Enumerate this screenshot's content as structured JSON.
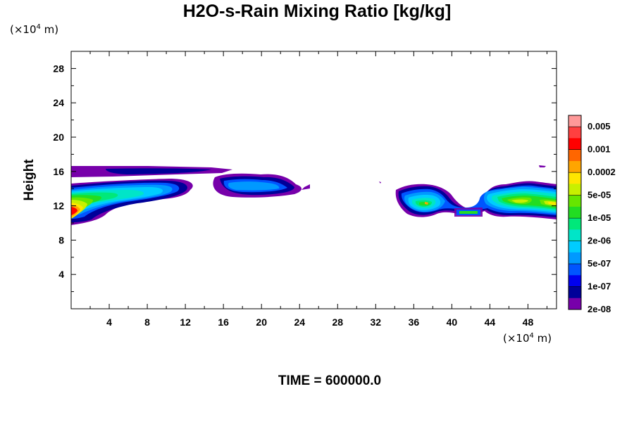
{
  "title": "H2O-s-Rain Mixing Ratio [kg/kg]",
  "time_label": "TIME = 600000.0",
  "y_unit": {
    "prefix": "(×10",
    "exp": "4",
    "suffix": " m)"
  },
  "x_unit": {
    "prefix": "(×10",
    "exp": "4",
    "suffix": " m)"
  },
  "chart_data": {
    "type": "heatmap",
    "title": "H2O-s-Rain Mixing Ratio [kg/kg]",
    "xlabel": "",
    "ylabel": "Height",
    "x_unit": "(×10^4 m)",
    "y_unit": "(×10^4 m)",
    "xlim": [
      0,
      51
    ],
    "ylim": [
      0,
      30
    ],
    "x_ticks": [
      4,
      8,
      12,
      16,
      20,
      24,
      28,
      32,
      36,
      40,
      44,
      48
    ],
    "y_ticks": [
      4,
      8,
      12,
      16,
      20,
      24,
      28
    ],
    "colorbar": {
      "labels": [
        "0.005",
        "0.001",
        "0.0002",
        "5e-05",
        "1e-05",
        "2e-06",
        "5e-07",
        "1e-07",
        "2e-08"
      ],
      "colors": [
        "#ff9999",
        "#ff4040",
        "#ff0000",
        "#ff6600",
        "#ffa500",
        "#ffe600",
        "#c8f000",
        "#66e600",
        "#22dd22",
        "#00e87a",
        "#00e5c8",
        "#00ccff",
        "#0099ff",
        "#0055ff",
        "#0000ee",
        "#000099",
        "#7700aa"
      ]
    },
    "regions": [
      {
        "x": [
          0.0,
          24.2
        ],
        "y": [
          9.6,
          16.6
        ],
        "max_level": "5e-05"
      },
      {
        "x": [
          0.0,
          4.0
        ],
        "y": [
          10.0,
          13.0
        ],
        "max_level": "0.001"
      },
      {
        "x": [
          34.0,
          51.0
        ],
        "y": [
          10.3,
          15.0
        ],
        "max_level": "0.0002"
      }
    ],
    "time": "TIME = 600000.0"
  }
}
